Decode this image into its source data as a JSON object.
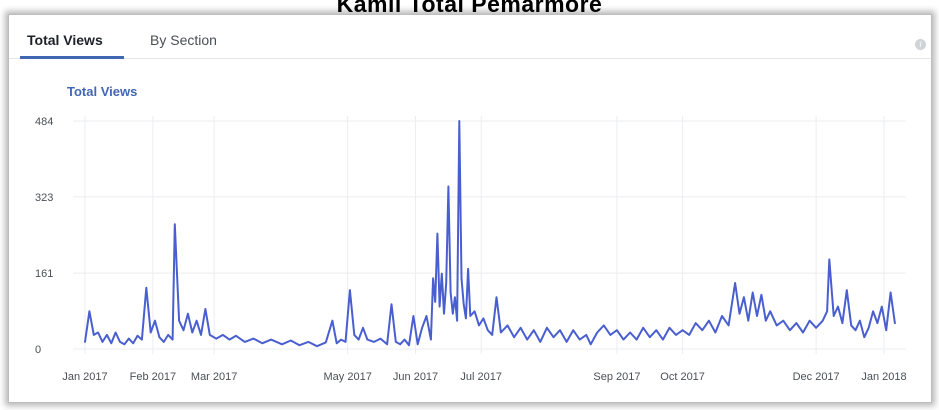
{
  "page_heading": "Kamli Total Pemarmore",
  "tabs": [
    {
      "label": "Total Views",
      "active": true
    },
    {
      "label": "By Section",
      "active": false
    }
  ],
  "icons": {
    "info": "info-icon"
  },
  "colors": {
    "accent": "#4267b2",
    "line": "#4a5fcf",
    "grid": "#ebedf0"
  },
  "chart_data": {
    "type": "line",
    "title": "Total Views",
    "xlabel": "",
    "ylabel": "",
    "ylim": [
      0,
      484
    ],
    "yticks": [
      0,
      161,
      323,
      484
    ],
    "xticks": [
      {
        "label": "Jan 2017",
        "date": "2017-01-01"
      },
      {
        "label": "Feb 2017",
        "date": "2017-02-01"
      },
      {
        "label": "Mar 2017",
        "date": "2017-03-01"
      },
      {
        "label": "May 2017",
        "date": "2017-05-01"
      },
      {
        "label": "Jun 2017",
        "date": "2017-06-01"
      },
      {
        "label": "Jul 2017",
        "date": "2017-07-01"
      },
      {
        "label": "Sep 2017",
        "date": "2017-09-01"
      },
      {
        "label": "Oct 2017",
        "date": "2017-10-01"
      },
      {
        "label": "Dec 2017",
        "date": "2017-12-01"
      },
      {
        "label": "Jan 2018",
        "date": "2018-01-01"
      }
    ],
    "grid": true,
    "legend": "none",
    "series": [
      {
        "color": "#4a5fcf",
        "points": [
          {
            "x": "2017-01-01",
            "y": 15
          },
          {
            "x": "2017-01-03",
            "y": 80
          },
          {
            "x": "2017-01-05",
            "y": 30
          },
          {
            "x": "2017-01-07",
            "y": 35
          },
          {
            "x": "2017-01-09",
            "y": 15
          },
          {
            "x": "2017-01-11",
            "y": 30
          },
          {
            "x": "2017-01-13",
            "y": 12
          },
          {
            "x": "2017-01-15",
            "y": 35
          },
          {
            "x": "2017-01-17",
            "y": 15
          },
          {
            "x": "2017-01-19",
            "y": 10
          },
          {
            "x": "2017-01-21",
            "y": 22
          },
          {
            "x": "2017-01-23",
            "y": 12
          },
          {
            "x": "2017-01-25",
            "y": 28
          },
          {
            "x": "2017-01-27",
            "y": 20
          },
          {
            "x": "2017-01-29",
            "y": 130
          },
          {
            "x": "2017-01-31",
            "y": 35
          },
          {
            "x": "2017-02-02",
            "y": 60
          },
          {
            "x": "2017-02-04",
            "y": 25
          },
          {
            "x": "2017-02-06",
            "y": 15
          },
          {
            "x": "2017-02-08",
            "y": 30
          },
          {
            "x": "2017-02-10",
            "y": 20
          },
          {
            "x": "2017-02-11",
            "y": 265
          },
          {
            "x": "2017-02-13",
            "y": 60
          },
          {
            "x": "2017-02-15",
            "y": 40
          },
          {
            "x": "2017-02-17",
            "y": 75
          },
          {
            "x": "2017-02-19",
            "y": 35
          },
          {
            "x": "2017-02-21",
            "y": 60
          },
          {
            "x": "2017-02-23",
            "y": 30
          },
          {
            "x": "2017-02-25",
            "y": 85
          },
          {
            "x": "2017-02-27",
            "y": 30
          },
          {
            "x": "2017-03-02",
            "y": 22
          },
          {
            "x": "2017-03-05",
            "y": 30
          },
          {
            "x": "2017-03-08",
            "y": 20
          },
          {
            "x": "2017-03-11",
            "y": 28
          },
          {
            "x": "2017-03-15",
            "y": 15
          },
          {
            "x": "2017-03-19",
            "y": 22
          },
          {
            "x": "2017-03-23",
            "y": 12
          },
          {
            "x": "2017-03-27",
            "y": 20
          },
          {
            "x": "2017-04-01",
            "y": 10
          },
          {
            "x": "2017-04-05",
            "y": 18
          },
          {
            "x": "2017-04-09",
            "y": 8
          },
          {
            "x": "2017-04-13",
            "y": 15
          },
          {
            "x": "2017-04-17",
            "y": 6
          },
          {
            "x": "2017-04-21",
            "y": 14
          },
          {
            "x": "2017-04-24",
            "y": 60
          },
          {
            "x": "2017-04-26",
            "y": 12
          },
          {
            "x": "2017-04-28",
            "y": 20
          },
          {
            "x": "2017-04-30",
            "y": 15
          },
          {
            "x": "2017-05-02",
            "y": 125
          },
          {
            "x": "2017-05-04",
            "y": 30
          },
          {
            "x": "2017-05-06",
            "y": 20
          },
          {
            "x": "2017-05-08",
            "y": 45
          },
          {
            "x": "2017-05-10",
            "y": 20
          },
          {
            "x": "2017-05-13",
            "y": 15
          },
          {
            "x": "2017-05-16",
            "y": 22
          },
          {
            "x": "2017-05-19",
            "y": 10
          },
          {
            "x": "2017-05-21",
            "y": 95
          },
          {
            "x": "2017-05-23",
            "y": 15
          },
          {
            "x": "2017-05-25",
            "y": 10
          },
          {
            "x": "2017-05-27",
            "y": 20
          },
          {
            "x": "2017-05-29",
            "y": 8
          },
          {
            "x": "2017-05-31",
            "y": 70
          },
          {
            "x": "2017-06-02",
            "y": 10
          },
          {
            "x": "2017-06-04",
            "y": 45
          },
          {
            "x": "2017-06-06",
            "y": 70
          },
          {
            "x": "2017-06-08",
            "y": 20
          },
          {
            "x": "2017-06-09",
            "y": 150
          },
          {
            "x": "2017-06-10",
            "y": 100
          },
          {
            "x": "2017-06-11",
            "y": 245
          },
          {
            "x": "2017-06-12",
            "y": 90
          },
          {
            "x": "2017-06-13",
            "y": 160
          },
          {
            "x": "2017-06-14",
            "y": 75
          },
          {
            "x": "2017-06-15",
            "y": 140
          },
          {
            "x": "2017-06-16",
            "y": 345
          },
          {
            "x": "2017-06-17",
            "y": 120
          },
          {
            "x": "2017-06-18",
            "y": 75
          },
          {
            "x": "2017-06-19",
            "y": 110
          },
          {
            "x": "2017-06-20",
            "y": 60
          },
          {
            "x": "2017-06-21",
            "y": 484
          },
          {
            "x": "2017-06-22",
            "y": 150
          },
          {
            "x": "2017-06-23",
            "y": 95
          },
          {
            "x": "2017-06-24",
            "y": 65
          },
          {
            "x": "2017-06-25",
            "y": 170
          },
          {
            "x": "2017-06-26",
            "y": 70
          },
          {
            "x": "2017-06-28",
            "y": 80
          },
          {
            "x": "2017-06-30",
            "y": 50
          },
          {
            "x": "2017-07-02",
            "y": 65
          },
          {
            "x": "2017-07-04",
            "y": 40
          },
          {
            "x": "2017-07-06",
            "y": 30
          },
          {
            "x": "2017-07-08",
            "y": 110
          },
          {
            "x": "2017-07-10",
            "y": 35
          },
          {
            "x": "2017-07-13",
            "y": 50
          },
          {
            "x": "2017-07-16",
            "y": 25
          },
          {
            "x": "2017-07-19",
            "y": 45
          },
          {
            "x": "2017-07-22",
            "y": 20
          },
          {
            "x": "2017-07-25",
            "y": 40
          },
          {
            "x": "2017-07-28",
            "y": 15
          },
          {
            "x": "2017-07-31",
            "y": 45
          },
          {
            "x": "2017-08-03",
            "y": 25
          },
          {
            "x": "2017-08-06",
            "y": 40
          },
          {
            "x": "2017-08-09",
            "y": 15
          },
          {
            "x": "2017-08-12",
            "y": 40
          },
          {
            "x": "2017-08-15",
            "y": 20
          },
          {
            "x": "2017-08-18",
            "y": 30
          },
          {
            "x": "2017-08-20",
            "y": 10
          },
          {
            "x": "2017-08-23",
            "y": 35
          },
          {
            "x": "2017-08-26",
            "y": 50
          },
          {
            "x": "2017-08-29",
            "y": 30
          },
          {
            "x": "2017-09-01",
            "y": 40
          },
          {
            "x": "2017-09-04",
            "y": 20
          },
          {
            "x": "2017-09-07",
            "y": 35
          },
          {
            "x": "2017-09-10",
            "y": 20
          },
          {
            "x": "2017-09-13",
            "y": 45
          },
          {
            "x": "2017-09-16",
            "y": 25
          },
          {
            "x": "2017-09-19",
            "y": 40
          },
          {
            "x": "2017-09-22",
            "y": 20
          },
          {
            "x": "2017-09-25",
            "y": 45
          },
          {
            "x": "2017-09-28",
            "y": 30
          },
          {
            "x": "2017-10-01",
            "y": 40
          },
          {
            "x": "2017-10-04",
            "y": 30
          },
          {
            "x": "2017-10-07",
            "y": 55
          },
          {
            "x": "2017-10-10",
            "y": 40
          },
          {
            "x": "2017-10-13",
            "y": 60
          },
          {
            "x": "2017-10-16",
            "y": 35
          },
          {
            "x": "2017-10-19",
            "y": 70
          },
          {
            "x": "2017-10-22",
            "y": 50
          },
          {
            "x": "2017-10-25",
            "y": 140
          },
          {
            "x": "2017-10-27",
            "y": 75
          },
          {
            "x": "2017-10-29",
            "y": 110
          },
          {
            "x": "2017-10-31",
            "y": 60
          },
          {
            "x": "2017-11-02",
            "y": 120
          },
          {
            "x": "2017-11-04",
            "y": 70
          },
          {
            "x": "2017-11-06",
            "y": 115
          },
          {
            "x": "2017-11-08",
            "y": 60
          },
          {
            "x": "2017-11-10",
            "y": 80
          },
          {
            "x": "2017-11-13",
            "y": 50
          },
          {
            "x": "2017-11-16",
            "y": 60
          },
          {
            "x": "2017-11-19",
            "y": 40
          },
          {
            "x": "2017-11-22",
            "y": 55
          },
          {
            "x": "2017-11-25",
            "y": 35
          },
          {
            "x": "2017-11-28",
            "y": 60
          },
          {
            "x": "2017-12-01",
            "y": 45
          },
          {
            "x": "2017-12-04",
            "y": 60
          },
          {
            "x": "2017-12-06",
            "y": 80
          },
          {
            "x": "2017-12-07",
            "y": 190
          },
          {
            "x": "2017-12-09",
            "y": 70
          },
          {
            "x": "2017-12-11",
            "y": 90
          },
          {
            "x": "2017-12-13",
            "y": 55
          },
          {
            "x": "2017-12-15",
            "y": 125
          },
          {
            "x": "2017-12-17",
            "y": 50
          },
          {
            "x": "2017-12-19",
            "y": 40
          },
          {
            "x": "2017-12-21",
            "y": 60
          },
          {
            "x": "2017-12-23",
            "y": 25
          },
          {
            "x": "2017-12-25",
            "y": 45
          },
          {
            "x": "2017-12-27",
            "y": 80
          },
          {
            "x": "2017-12-29",
            "y": 55
          },
          {
            "x": "2017-12-31",
            "y": 90
          },
          {
            "x": "2018-01-02",
            "y": 40
          },
          {
            "x": "2018-01-04",
            "y": 120
          },
          {
            "x": "2018-01-06",
            "y": 55
          }
        ]
      }
    ]
  }
}
